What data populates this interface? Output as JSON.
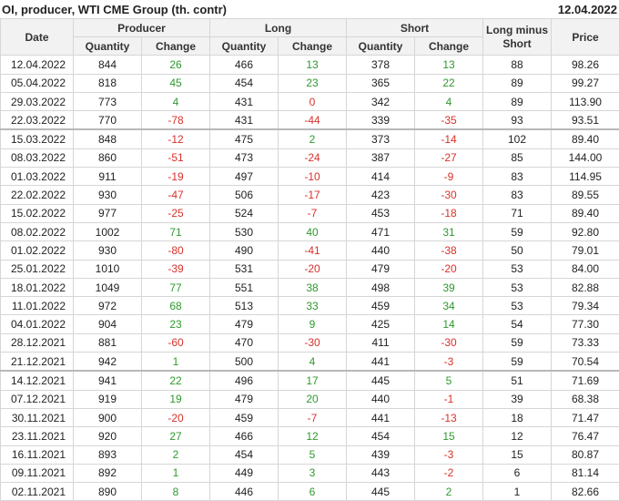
{
  "header": {
    "title": "OI, producer, WTI CME Group (th. contr)",
    "date": "12.04.2022"
  },
  "table": {
    "columns": [
      "Date",
      "Producer",
      "Long",
      "Short",
      "Long minus Short",
      "Price"
    ],
    "subcolumns": [
      "Quantity",
      "Change",
      "Quantity",
      "Change",
      "Quantity",
      "Change"
    ],
    "groups": [
      [
        [
          "12.04.2022",
          "844",
          "26",
          "466",
          "13",
          "378",
          "13",
          "88",
          "98.26"
        ],
        [
          "05.04.2022",
          "818",
          "45",
          "454",
          "23",
          "365",
          "22",
          "89",
          "99.27"
        ],
        [
          "29.03.2022",
          "773",
          "4",
          "431",
          "0",
          "342",
          "4",
          "89",
          "113.90"
        ],
        [
          "22.03.2022",
          "770",
          "-78",
          "431",
          "-44",
          "339",
          "-35",
          "93",
          "93.51"
        ]
      ],
      [
        [
          "15.03.2022",
          "848",
          "-12",
          "475",
          "2",
          "373",
          "-14",
          "102",
          "89.40"
        ],
        [
          "08.03.2022",
          "860",
          "-51",
          "473",
          "-24",
          "387",
          "-27",
          "85",
          "144.00"
        ],
        [
          "01.03.2022",
          "911",
          "-19",
          "497",
          "-10",
          "414",
          "-9",
          "83",
          "114.95"
        ],
        [
          "22.02.2022",
          "930",
          "-47",
          "506",
          "-17",
          "423",
          "-30",
          "83",
          "89.55"
        ],
        [
          "15.02.2022",
          "977",
          "-25",
          "524",
          "-7",
          "453",
          "-18",
          "71",
          "89.40"
        ],
        [
          "08.02.2022",
          "1002",
          "71",
          "530",
          "40",
          "471",
          "31",
          "59",
          "92.80"
        ],
        [
          "01.02.2022",
          "930",
          "-80",
          "490",
          "-41",
          "440",
          "-38",
          "50",
          "79.01"
        ],
        [
          "25.01.2022",
          "1010",
          "-39",
          "531",
          "-20",
          "479",
          "-20",
          "53",
          "84.00"
        ],
        [
          "18.01.2022",
          "1049",
          "77",
          "551",
          "38",
          "498",
          "39",
          "53",
          "82.88"
        ],
        [
          "11.01.2022",
          "972",
          "68",
          "513",
          "33",
          "459",
          "34",
          "53",
          "79.34"
        ],
        [
          "04.01.2022",
          "904",
          "23",
          "479",
          "9",
          "425",
          "14",
          "54",
          "77.30"
        ],
        [
          "28.12.2021",
          "881",
          "-60",
          "470",
          "-30",
          "411",
          "-30",
          "59",
          "73.33"
        ],
        [
          "21.12.2021",
          "942",
          "1",
          "500",
          "4",
          "441",
          "-3",
          "59",
          "70.54"
        ]
      ],
      [
        [
          "14.12.2021",
          "941",
          "22",
          "496",
          "17",
          "445",
          "5",
          "51",
          "71.69"
        ],
        [
          "07.12.2021",
          "919",
          "19",
          "479",
          "20",
          "440",
          "-1",
          "39",
          "68.38"
        ],
        [
          "30.11.2021",
          "900",
          "-20",
          "459",
          "-7",
          "441",
          "-13",
          "18",
          "71.47"
        ],
        [
          "23.11.2021",
          "920",
          "27",
          "466",
          "12",
          "454",
          "15",
          "12",
          "76.47"
        ],
        [
          "16.11.2021",
          "893",
          "2",
          "454",
          "5",
          "439",
          "-3",
          "15",
          "80.87"
        ],
        [
          "09.11.2021",
          "892",
          "1",
          "449",
          "3",
          "443",
          "-2",
          "6",
          "81.14"
        ],
        [
          "02.11.2021",
          "890",
          "8",
          "446",
          "6",
          "445",
          "2",
          "1",
          "82.66"
        ]
      ]
    ]
  }
}
